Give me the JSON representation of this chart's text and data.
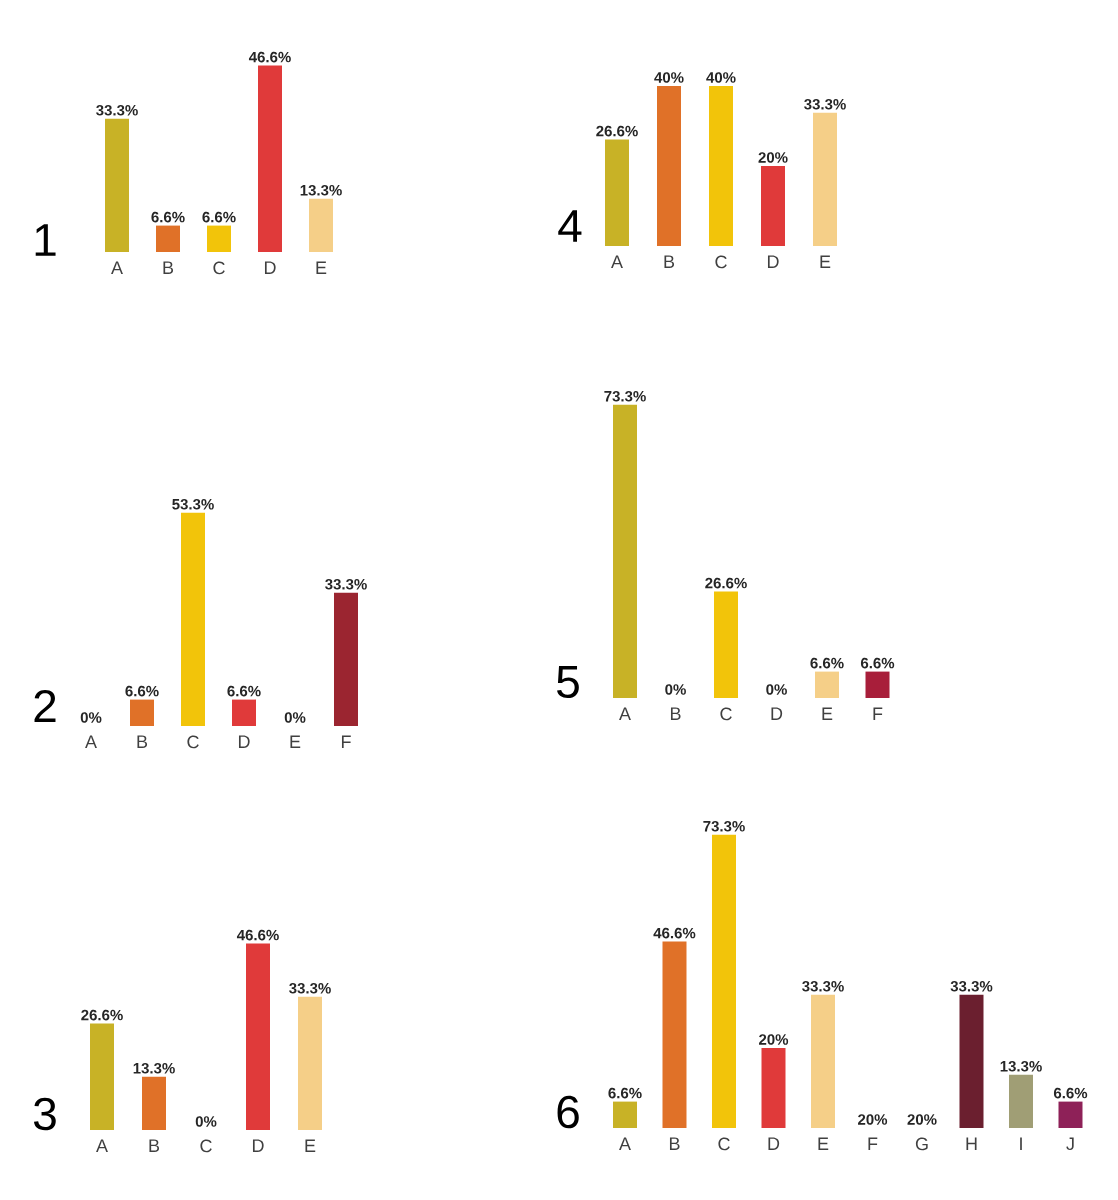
{
  "chart_data": [
    {
      "type": "bar",
      "title": "1",
      "tick_labels": "x",
      "categories": [
        "A",
        "B",
        "C",
        "D",
        "E"
      ],
      "values": [
        33.3,
        6.6,
        6.6,
        46.6,
        13.3
      ],
      "value_labels": [
        "33.3%",
        "6.6%",
        "6.6%",
        "46.6%",
        "13.3%"
      ],
      "colors": [
        "#c8b226",
        "#e07128",
        "#f2c40a",
        "#e03a3a",
        "#f5cf88"
      ]
    },
    {
      "type": "bar",
      "title": "2",
      "tick_labels": "x",
      "categories": [
        "A",
        "B",
        "C",
        "D",
        "E",
        "F"
      ],
      "values": [
        0,
        6.6,
        53.3,
        6.6,
        0,
        33.3
      ],
      "value_labels": [
        "0%",
        "6.6%",
        "53.3%",
        "6.6%",
        "0%",
        "33.3%"
      ],
      "colors": [
        "#c8b226",
        "#e07128",
        "#f2c40a",
        "#e03a3a",
        "#f5cf88",
        "#9b2530"
      ]
    },
    {
      "type": "bar",
      "title": "3",
      "tick_labels": "x",
      "categories": [
        "A",
        "B",
        "C",
        "D",
        "E"
      ],
      "values": [
        26.6,
        13.3,
        0,
        46.6,
        33.3
      ],
      "value_labels": [
        "26.6%",
        "13.3%",
        "0%",
        "46.6%",
        "33.3%"
      ],
      "colors": [
        "#c8b226",
        "#e07128",
        "#f2c40a",
        "#e03a3a",
        "#f5cf88"
      ]
    },
    {
      "type": "bar",
      "title": "4",
      "tick_labels": "x",
      "categories": [
        "A",
        "B",
        "C",
        "D",
        "E"
      ],
      "values": [
        26.6,
        40,
        40,
        20,
        33.3
      ],
      "value_labels": [
        "26.6%",
        "40%",
        "40%",
        "20%",
        "33.3%"
      ],
      "colors": [
        "#c8b226",
        "#e07128",
        "#f2c40a",
        "#e03a3a",
        "#f5cf88"
      ]
    },
    {
      "type": "bar",
      "title": "5",
      "tick_labels": "x",
      "categories": [
        "A",
        "B",
        "C",
        "D",
        "E",
        "F"
      ],
      "values": [
        73.3,
        0,
        26.6,
        0,
        6.6,
        6.6
      ],
      "value_labels": [
        "73.3%",
        "0%",
        "26.6%",
        "0%",
        "6.6%",
        "6.6%"
      ],
      "colors": [
        "#c8b226",
        "#e07128",
        "#f2c40a",
        "#e03a3a",
        "#f5cf88",
        "#a81e3a"
      ]
    },
    {
      "type": "bar",
      "title": "6",
      "tick_labels": "x",
      "categories": [
        "A",
        "B",
        "C",
        "D",
        "E",
        "F",
        "G",
        "H",
        "I",
        "J"
      ],
      "values": [
        6.6,
        46.6,
        73.3,
        20,
        33.3,
        null,
        null,
        33.3,
        13.3,
        6.6
      ],
      "value_labels": [
        "6.6%",
        "46.6%",
        "73.3%",
        "20%",
        "33.3%",
        "20%",
        "20%",
        "33.3%",
        "13.3%",
        "6.6%"
      ],
      "colors": [
        "#c8b226",
        "#e07128",
        "#f2c40a",
        "#e03a3a",
        "#f5cf88",
        "#d9d9d9",
        "#d9d9d9",
        "#6b1f2f",
        "#a09e75",
        "#8e2158"
      ]
    }
  ]
}
